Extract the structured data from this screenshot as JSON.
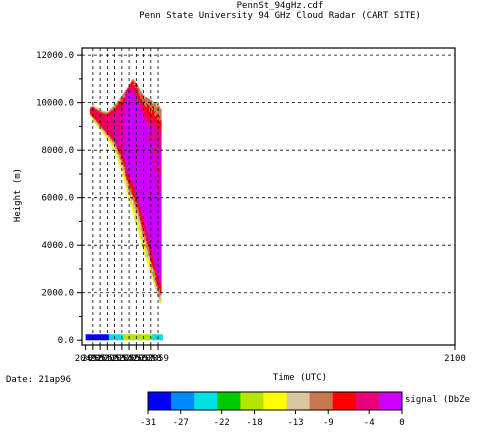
{
  "chart_data": {
    "type": "heatmap",
    "title": "PennSt_94gHz.cdf",
    "subtitle": "Penn State University 94 GHz Cloud Radar (CART SITE)",
    "xlabel": "Time (UTC)",
    "ylabel": "Height (m)",
    "date_label": "Date: 21ap96",
    "xlim": [
      2048.5,
      2100
    ],
    "ylim": [
      -200,
      12300
    ],
    "xticks": [
      2049,
      2050,
      2051,
      2052,
      2053,
      2054,
      2055,
      2056,
      2057,
      2058,
      2059,
      2100
    ],
    "xtick_labels": [
      "2049",
      "2050",
      "2051",
      "2052",
      "2053",
      "2054",
      "2055",
      "2056",
      "2057",
      "2058",
      "2059",
      "2100"
    ],
    "yticks": [
      0,
      2000,
      4000,
      6000,
      8000,
      10000,
      12000
    ],
    "ytick_labels": [
      "0.0",
      "2000.0",
      "4000.0",
      "6000.0",
      "8000.0",
      "10000.0",
      "12000.0"
    ],
    "grid": true,
    "colorbar": {
      "label": "signal (DbZe",
      "ticks": [
        -31,
        -27,
        -22,
        -18,
        -13,
        -9,
        -4,
        0
      ],
      "tick_labels": [
        "-31",
        "-27",
        "-22",
        "-18",
        "-13",
        "-9",
        "-4",
        "0"
      ],
      "range": [
        -31,
        0
      ],
      "colors": [
        "#0000ff",
        "#0088ff",
        "#00e0e0",
        "#00c800",
        "#b4e600",
        "#ffff00",
        "#d8c8a0",
        "#c87850",
        "#ff0000",
        "#e8007c",
        "#cc00ff"
      ]
    },
    "cloud_top": {
      "time": [
        2049.6,
        2050,
        2051,
        2052,
        2053,
        2054,
        2055,
        2055.5,
        2056,
        2056.5,
        2057,
        2058,
        2059,
        2059.4
      ],
      "height": [
        9800,
        9900,
        9700,
        9600,
        9900,
        10300,
        10700,
        11000,
        10800,
        10500,
        10300,
        10100,
        9900,
        9700
      ]
    },
    "cloud_base": {
      "time": [
        2049.6,
        2050,
        2051,
        2052,
        2053,
        2054,
        2055,
        2056,
        2057,
        2058,
        2059,
        2059.4
      ],
      "height": [
        9500,
        9300,
        8900,
        8500,
        8000,
        7100,
        5900,
        4900,
        3800,
        2800,
        1800,
        1500
      ]
    },
    "core_max_signal": {
      "time": [
        2054.5,
        2055,
        2055.5,
        2056,
        2056.5,
        2057,
        2058,
        2059
      ],
      "height": [
        9200,
        9000,
        8700,
        8200,
        7600,
        6900,
        5300,
        3500
      ]
    },
    "ground_echo": {
      "height_max": 250,
      "time_range": [
        2049,
        2059.4
      ]
    }
  }
}
